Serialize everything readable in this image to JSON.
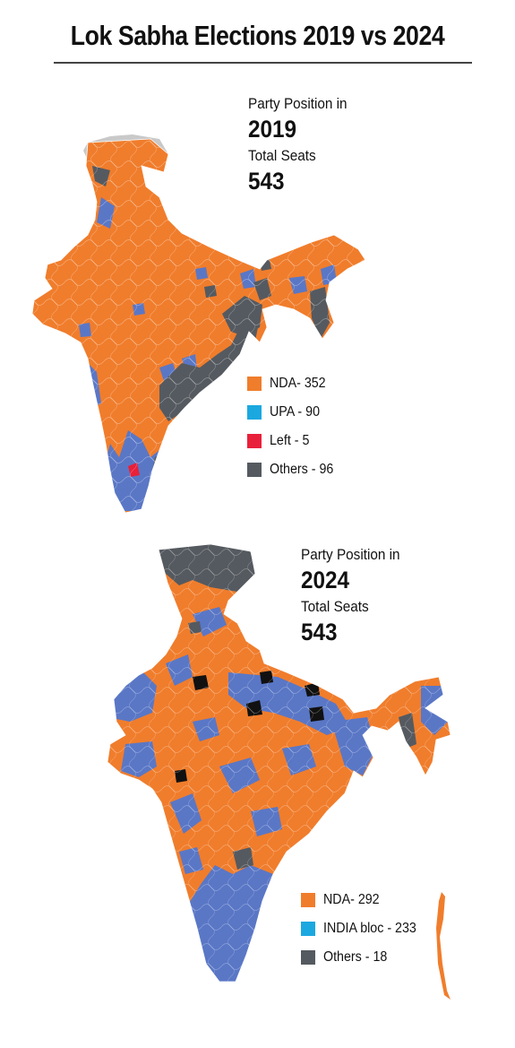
{
  "title": "Lok Sabha Elections 2019 vs 2024",
  "colors": {
    "nda": "#F07D2C",
    "upa": "#1BA8E0",
    "map_blue": "#5A77C6",
    "left": "#E8203A",
    "others": "#555A60",
    "disputed": "#C9C9C9"
  },
  "map2019": {
    "heading": "Party Position in",
    "year": "2019",
    "seats_label": "Total Seats",
    "seats": "543",
    "legend": [
      {
        "label": "NDA- 352",
        "color": "#F07D2C"
      },
      {
        "label": "UPA - 90",
        "color": "#1BA8E0"
      },
      {
        "label": "Left - 5",
        "color": "#E8203A"
      },
      {
        "label": "Others - 96",
        "color": "#555A60"
      }
    ]
  },
  "map2024": {
    "heading": "Party Position in",
    "year": "2024",
    "seats_label": "Total Seats",
    "seats": "543",
    "legend": [
      {
        "label": "NDA- 292",
        "color": "#F07D2C"
      },
      {
        "label": "INDIA bloc - 233",
        "color": "#1BA8E0"
      },
      {
        "label": "Others - 18",
        "color": "#555A60"
      }
    ]
  }
}
